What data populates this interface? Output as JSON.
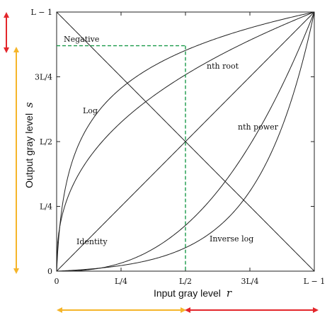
{
  "chart_data": {
    "type": "line",
    "title": "",
    "xlabel": "Input gray level",
    "xlabel_var": "r",
    "ylabel": "Output gray level",
    "ylabel_var": "s",
    "xlim": [
      0,
      1
    ],
    "ylim": [
      0,
      1
    ],
    "grid": false,
    "x_ticks": [
      {
        "value": 0,
        "label": "0"
      },
      {
        "value": 0.25,
        "label": "L/4"
      },
      {
        "value": 0.5,
        "label": "L/2"
      },
      {
        "value": 0.75,
        "label": "3L/4"
      },
      {
        "value": 1,
        "label": "L − 1"
      }
    ],
    "y_ticks": [
      {
        "value": 0,
        "label": "0"
      },
      {
        "value": 0.25,
        "label": "L/4"
      },
      {
        "value": 0.5,
        "label": "L/2"
      },
      {
        "value": 0.75,
        "label": "3L/4"
      },
      {
        "value": 1,
        "label": "L − 1"
      }
    ],
    "series": [
      {
        "name": "Negative",
        "kind": "negative"
      },
      {
        "name": "Log",
        "kind": "log"
      },
      {
        "name": "nth root",
        "kind": "nthroot"
      },
      {
        "name": "Identity",
        "kind": "identity"
      },
      {
        "name": "nth power",
        "kind": "nthpower"
      },
      {
        "name": "Inverse log",
        "kind": "invlog"
      }
    ],
    "guide": {
      "x": 0.5,
      "y": 0.87,
      "color": "#1a9a4a"
    },
    "arrows": {
      "colors": {
        "low": "#f5b52a",
        "high": "#e3262b"
      },
      "x_split": 0.5,
      "y_split": 0.87
    }
  }
}
